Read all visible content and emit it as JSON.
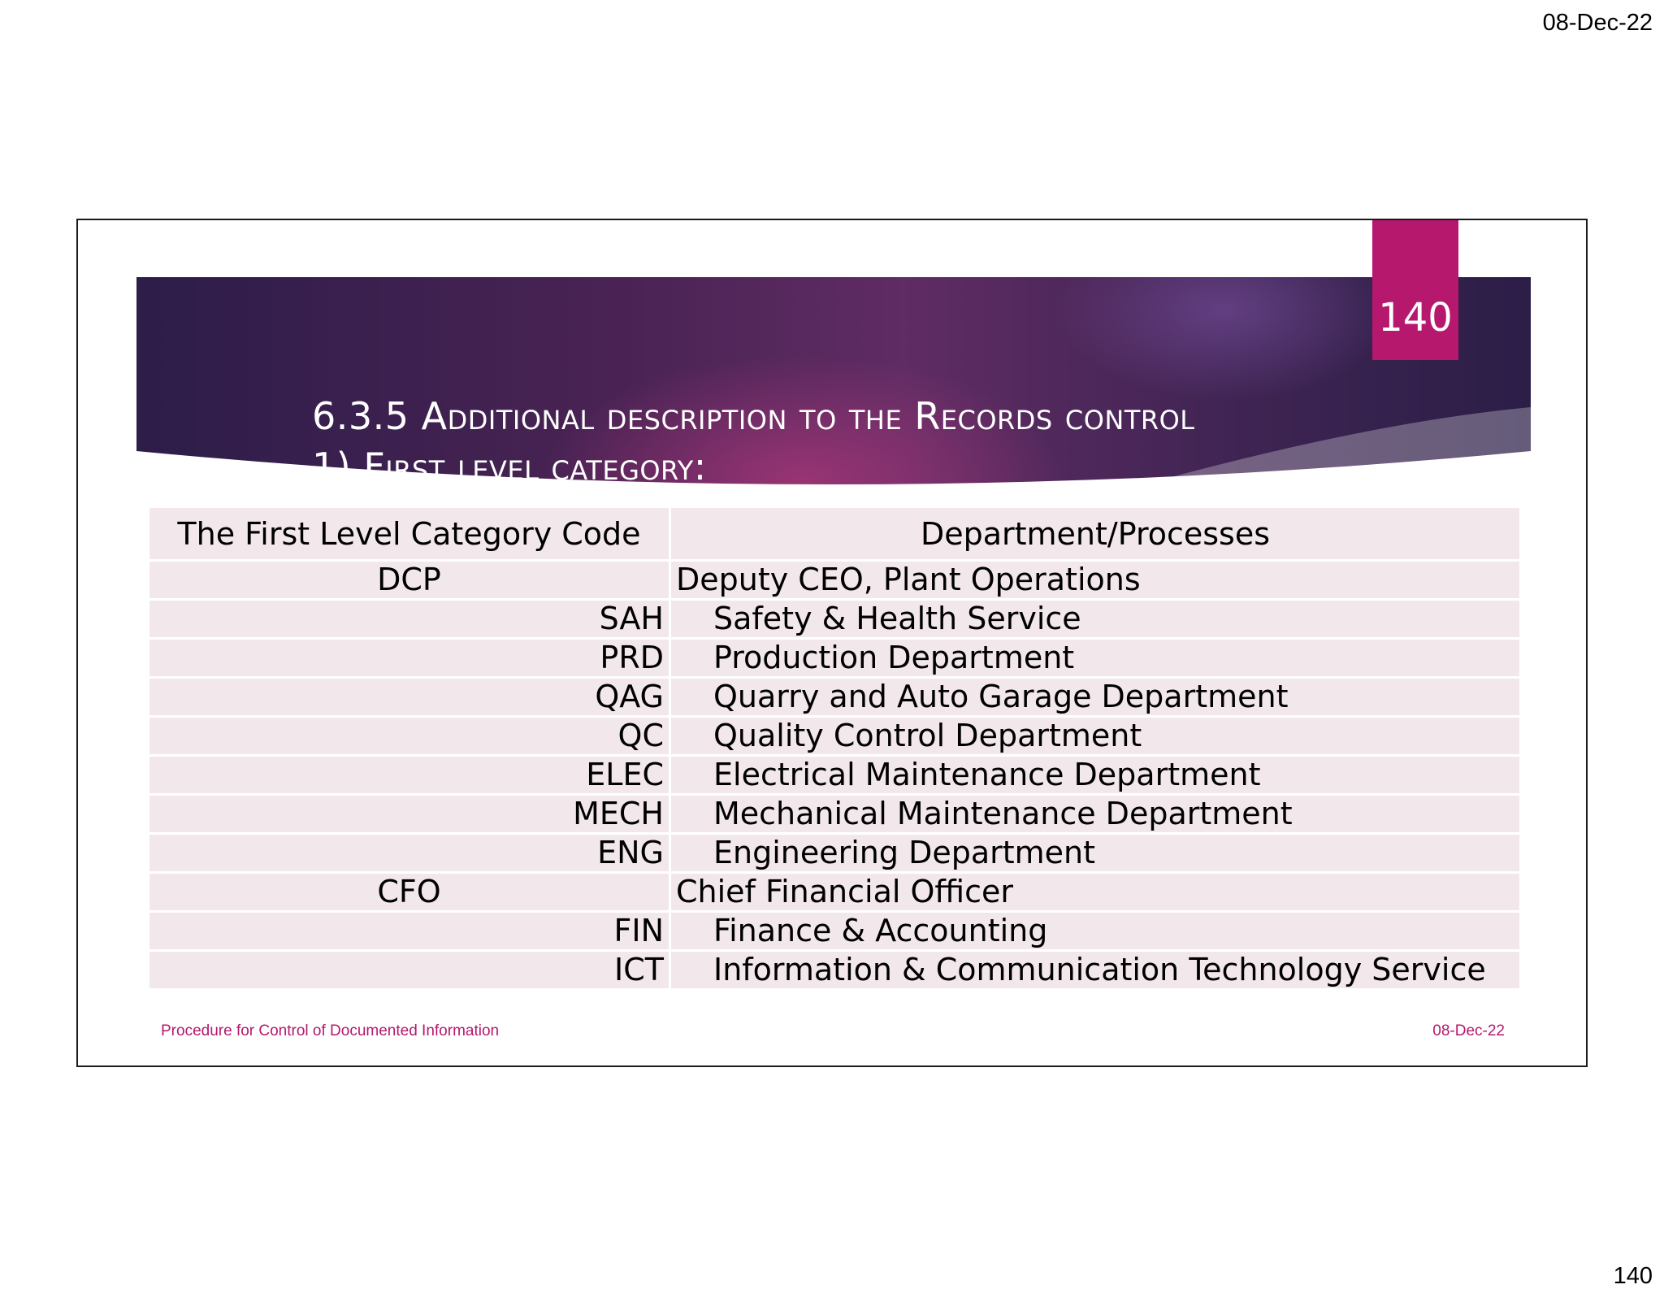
{
  "page_header": {
    "date": "08-Dec-22"
  },
  "page_footer": {
    "page_number": "140"
  },
  "slide": {
    "title_line1": "6.3.5 Additional description to the Records control",
    "title_line2": "1) First level category:",
    "slide_number": "140",
    "table": {
      "headers": [
        "The First Level Category Code",
        "Department/Processes"
      ],
      "rows": [
        {
          "code": "DCP",
          "dept": "Deputy CEO, Plant Operations",
          "level": "top"
        },
        {
          "code": "SAH",
          "dept": "Safety & Health Service",
          "level": "sub"
        },
        {
          "code": "PRD",
          "dept": "Production Department",
          "level": "sub"
        },
        {
          "code": "QAG",
          "dept": "Quarry and Auto Garage Department",
          "level": "sub"
        },
        {
          "code": "QC",
          "dept": "Quality Control Department",
          "level": "sub"
        },
        {
          "code": "ELEC",
          "dept": "Electrical Maintenance Department",
          "level": "sub"
        },
        {
          "code": "MECH",
          "dept": "Mechanical Maintenance Department",
          "level": "sub"
        },
        {
          "code": "ENG",
          "dept": "Engineering Department",
          "level": "sub"
        },
        {
          "code": "CFO",
          "dept": "Chief Financial Officer",
          "level": "top"
        },
        {
          "code": "FIN",
          "dept": "Finance & Accounting",
          "level": "sub"
        },
        {
          "code": "ICT",
          "dept": "Information & Communication Technology Service",
          "level": "sub"
        }
      ]
    },
    "footer_left": "Procedure for Control of Documented Information",
    "footer_right": "08-Dec-22",
    "colors": {
      "accent": "#b5186d",
      "banner_dark": "#2d1d49",
      "row_bg": "#f2e8eb"
    }
  }
}
